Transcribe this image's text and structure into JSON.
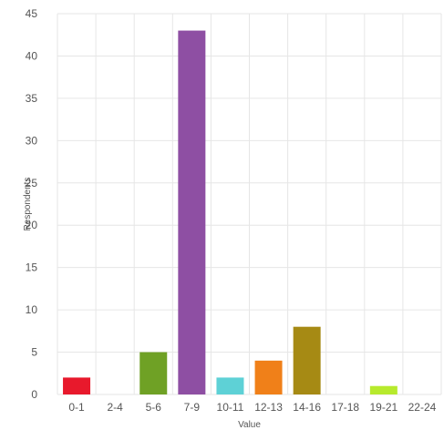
{
  "chart_data": {
    "type": "bar",
    "categories": [
      "0-1",
      "2-4",
      "5-6",
      "7-9",
      "10-11",
      "12-13",
      "14-16",
      "17-18",
      "19-21",
      "22-24"
    ],
    "values": [
      2,
      0,
      5,
      43,
      2,
      4,
      8,
      0,
      1,
      0
    ],
    "colors": [
      "#e8192c",
      "#cccccc",
      "#6fa125",
      "#8e4fa3",
      "#5ed1d6",
      "#f08019",
      "#a68a14",
      "#cccccc",
      "#b7ea2d",
      "#cccccc"
    ],
    "xlabel": "Value",
    "ylabel": "Respondents",
    "ylim": [
      0,
      45
    ],
    "yticks": [
      0,
      5,
      10,
      15,
      20,
      25,
      30,
      35,
      40,
      45
    ],
    "grid": true,
    "legend": "none"
  }
}
